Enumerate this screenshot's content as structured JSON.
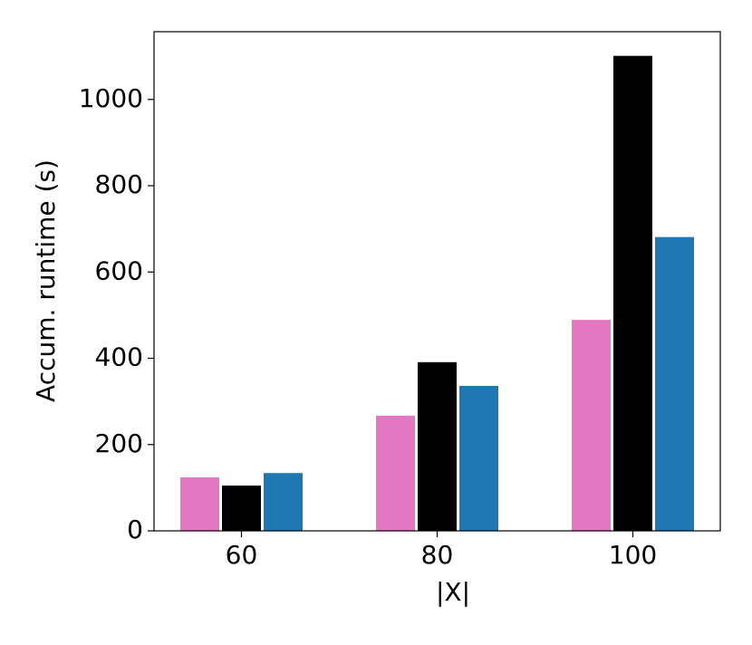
{
  "chart_data": {
    "type": "bar",
    "x_label": "|X|",
    "y_label": "Accum. runtime (s)",
    "categories": [
      "60",
      "80",
      "100"
    ],
    "series": [
      {
        "color": "#e377c2",
        "values": [
          124,
          267,
          489
        ]
      },
      {
        "color": "#000000",
        "values": [
          105,
          391,
          1101
        ]
      },
      {
        "color": "#1f77b4",
        "values": [
          134,
          336,
          681
        ]
      }
    ],
    "ylim": [
      0,
      1157
    ],
    "yticks": [
      0,
      200,
      400,
      600,
      800,
      1000
    ]
  }
}
